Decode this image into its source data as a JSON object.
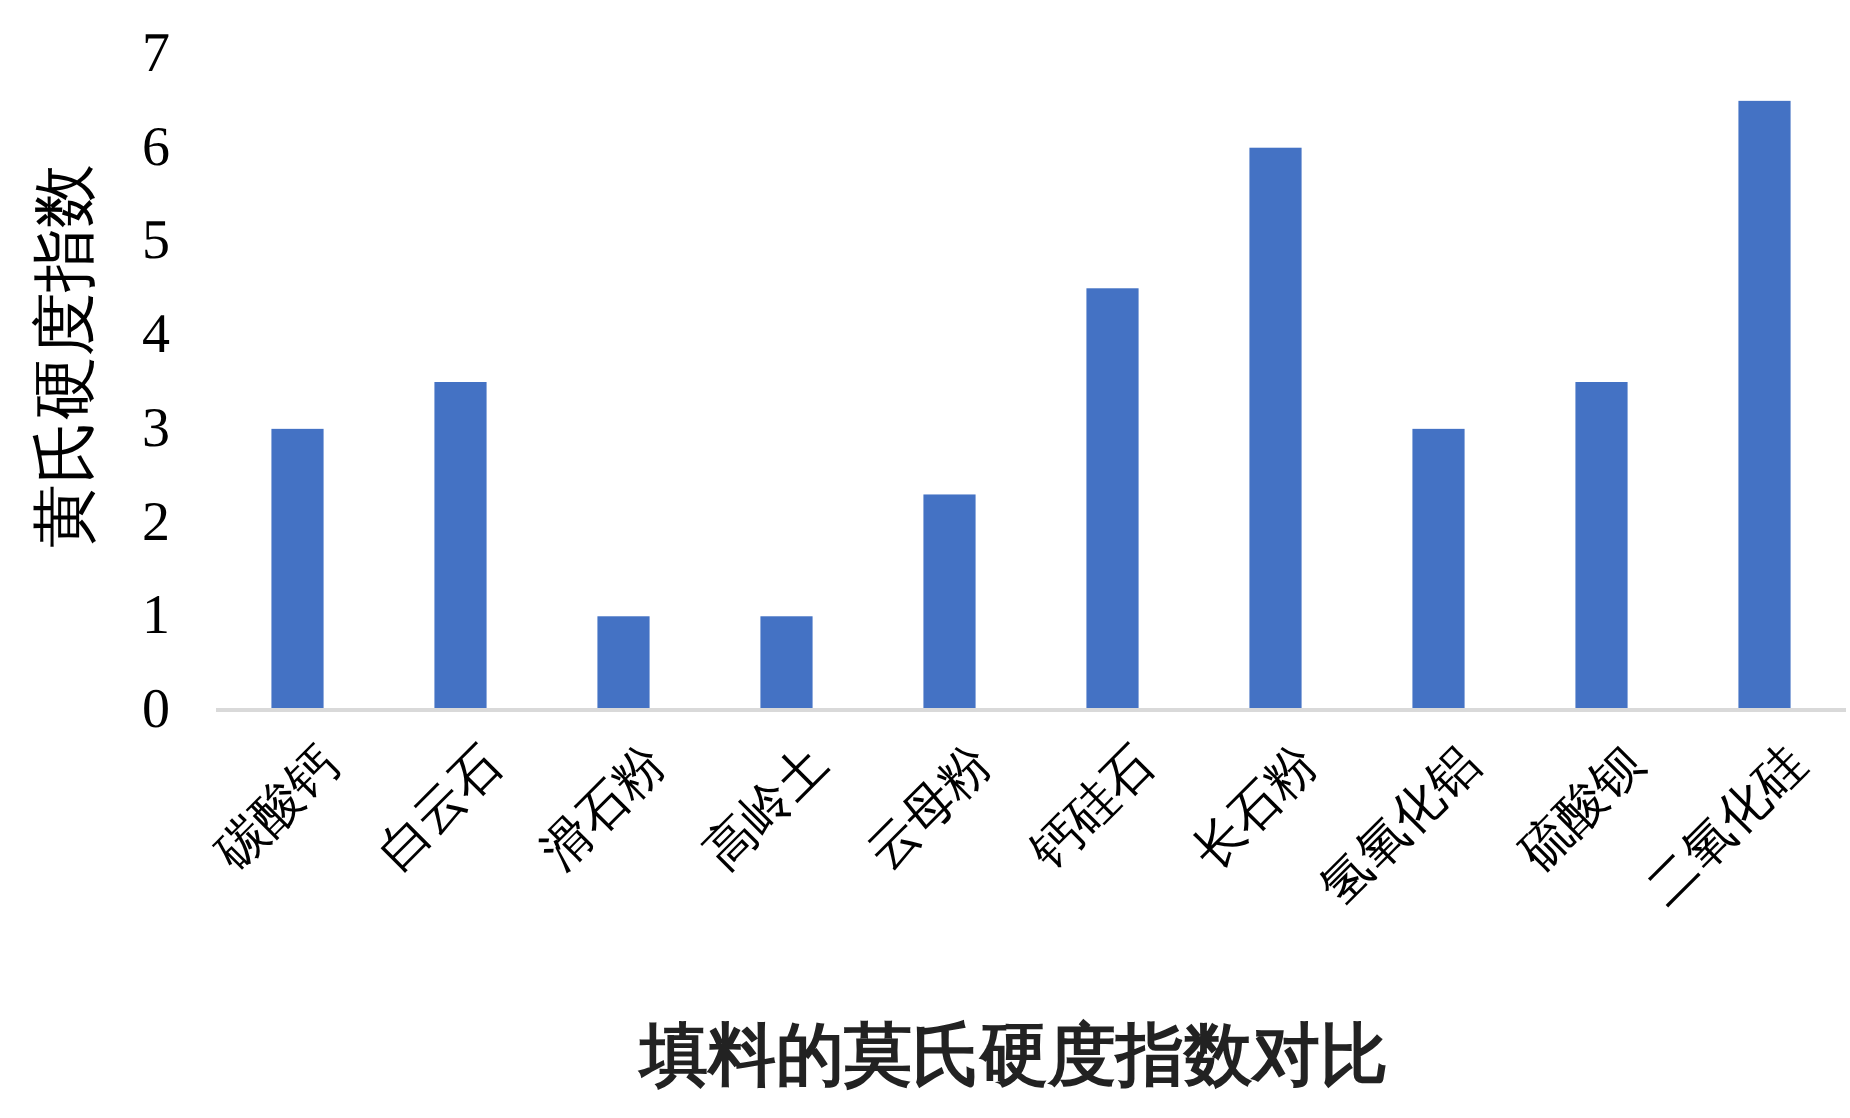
{
  "chart_data": {
    "type": "bar",
    "title": "填料的莫氏硬度指数对比",
    "ylabel": "黄氏硬度指数",
    "categories": [
      "碳酸钙",
      "白云石",
      "滑石粉",
      "高岭土",
      "云母粉",
      "钙硅石",
      "长石粉",
      "氢氧化铝",
      "硫酸钡",
      "二氧化硅"
    ],
    "values": [
      3,
      3.5,
      1,
      1,
      2.3,
      4.5,
      6,
      3,
      3.5,
      6.5
    ],
    "color": "#4472c4",
    "ylim": [
      0,
      7
    ],
    "yticks": [
      0,
      1,
      2,
      3,
      4,
      5,
      6,
      7
    ]
  }
}
